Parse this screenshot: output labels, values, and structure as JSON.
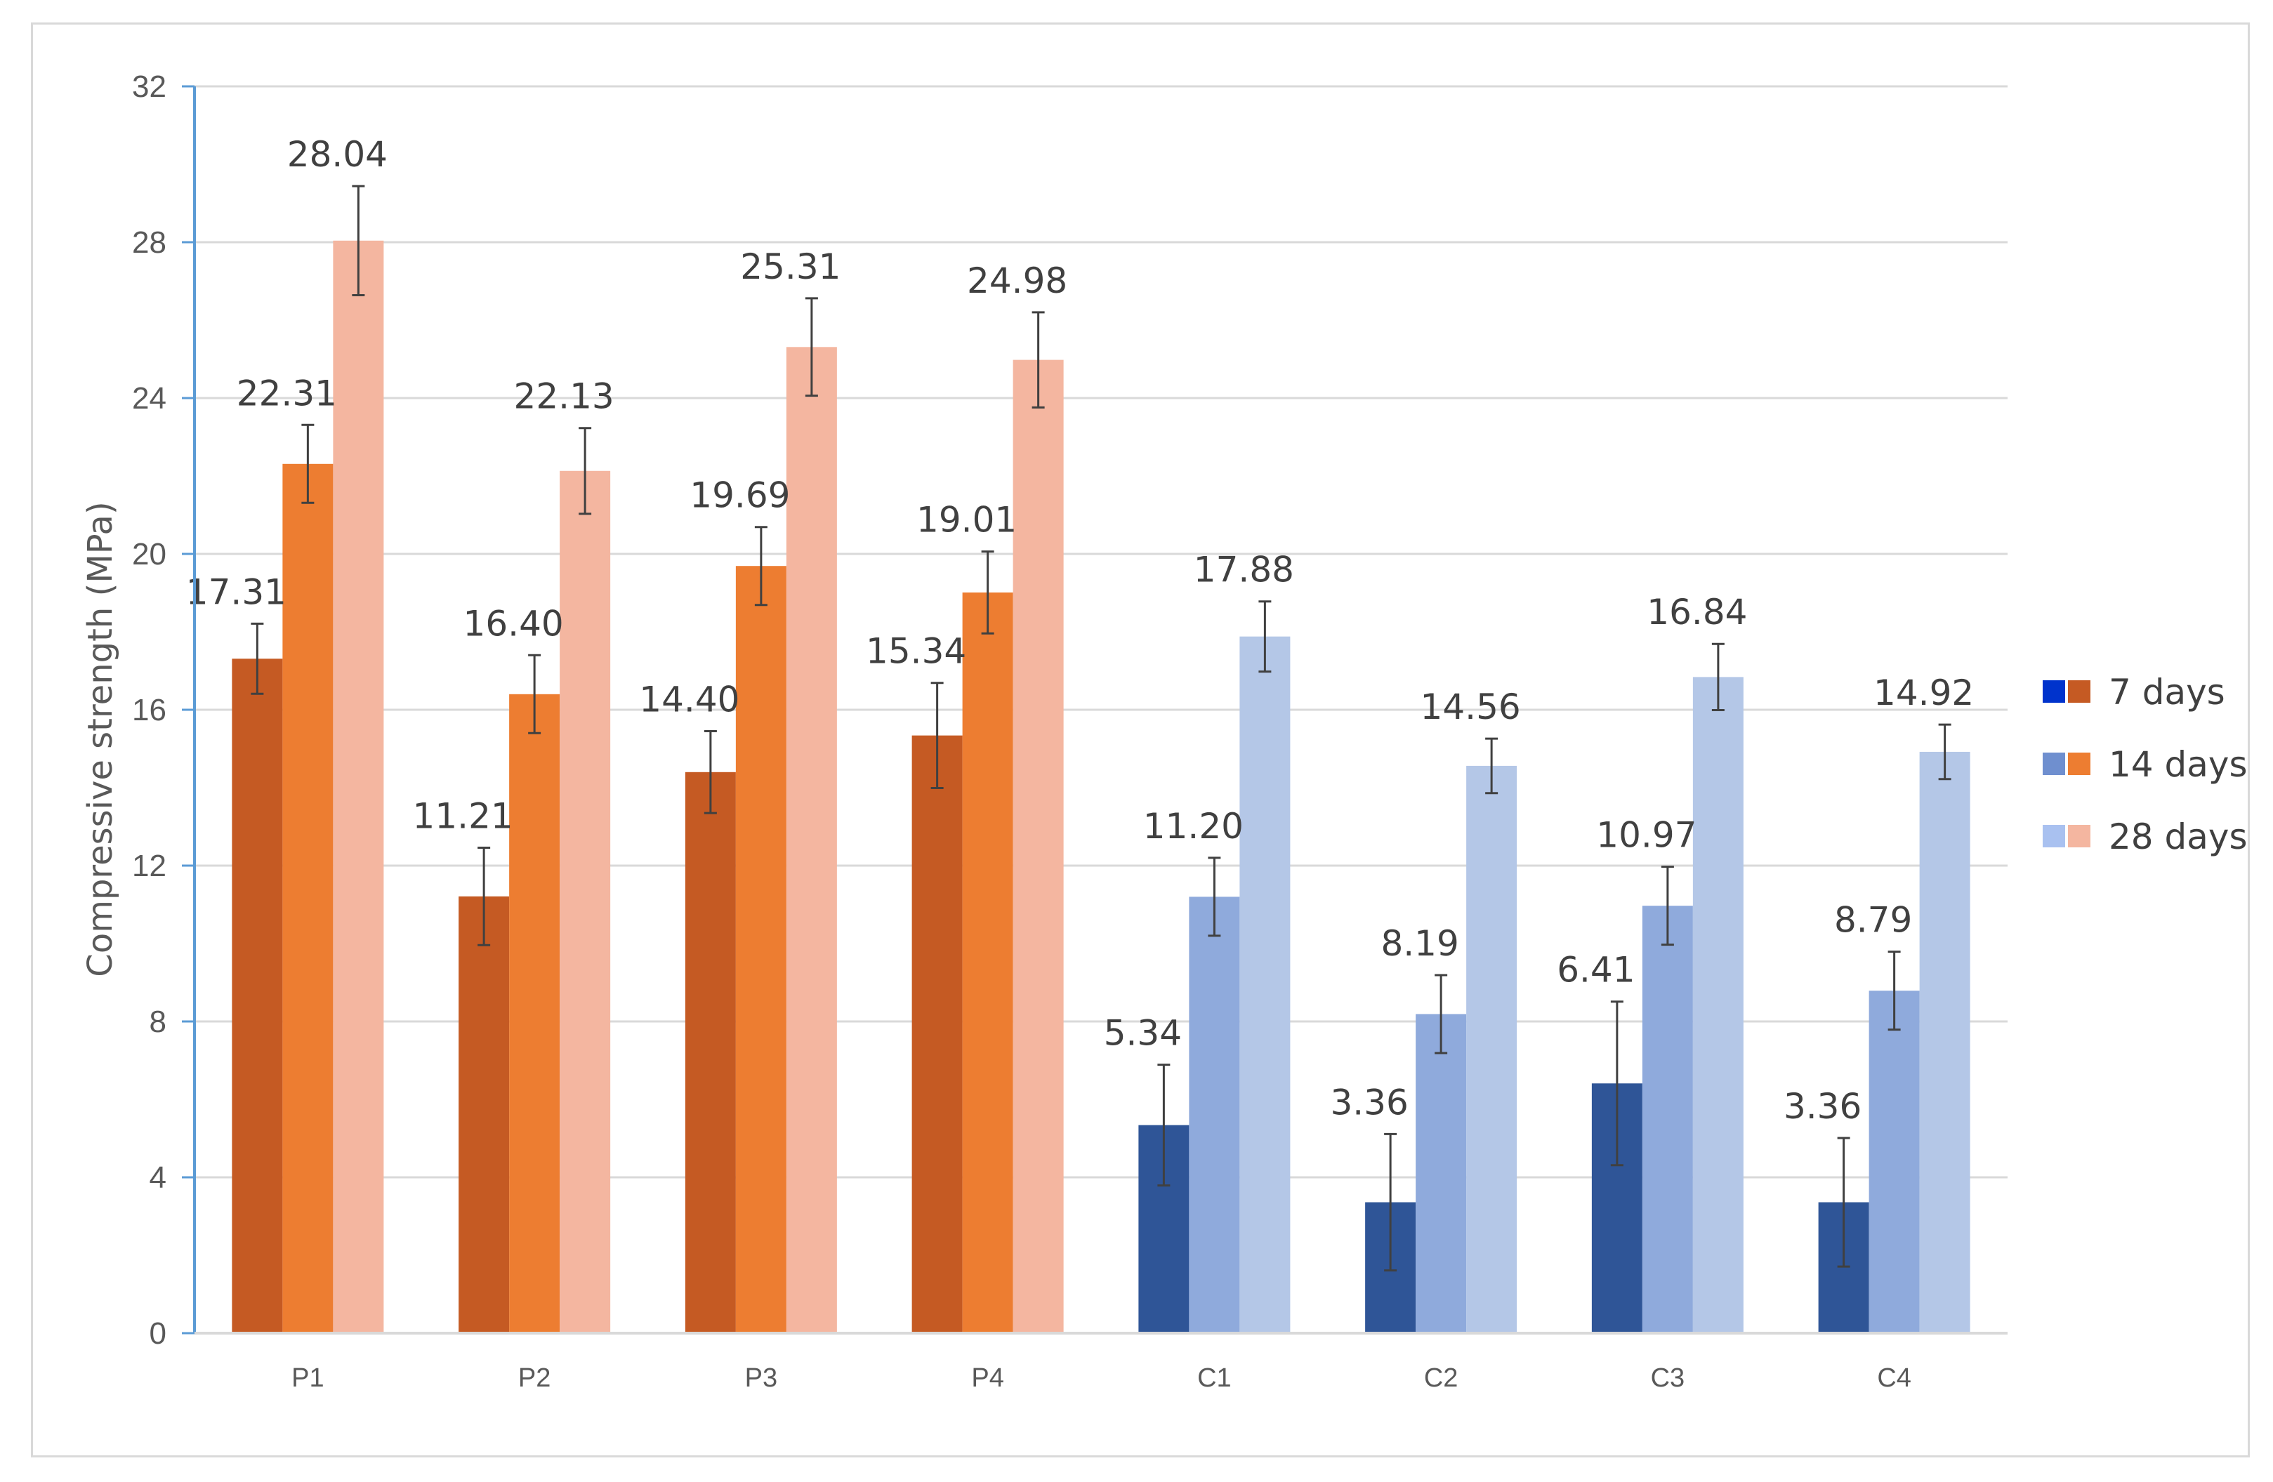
{
  "chart_data": {
    "type": "bar",
    "title": "",
    "xlabel": "",
    "ylabel": "Compressive strength (MPa)",
    "ylim": [
      0,
      32
    ],
    "yticks": [
      0,
      4,
      8,
      12,
      16,
      20,
      24,
      28,
      32
    ],
    "grid": true,
    "legend_position": "right",
    "categories": [
      "P1",
      "P2",
      "P3",
      "P4",
      "C1",
      "C2",
      "C3",
      "C4"
    ],
    "series": [
      {
        "name": "7 days",
        "values": [
          17.31,
          11.21,
          14.4,
          15.34,
          5.34,
          3.36,
          6.41,
          3.36
        ],
        "labels": [
          "17.31",
          "11.21",
          "14.40",
          "15.34",
          "5.34",
          "3.36",
          "6.41",
          "3.36"
        ],
        "error": [
          0.9,
          1.25,
          1.05,
          1.35,
          1.55,
          1.75,
          2.1,
          1.65
        ]
      },
      {
        "name": "14 days",
        "values": [
          22.31,
          16.4,
          19.69,
          19.01,
          11.2,
          8.19,
          10.97,
          8.79
        ],
        "labels": [
          "22.31",
          "16.40",
          "19.69",
          "19.01",
          "11.20",
          "8.19",
          "10.97",
          "8.79"
        ],
        "error": [
          1.0,
          1.0,
          1.0,
          1.05,
          1.0,
          1.0,
          1.0,
          1.0
        ]
      },
      {
        "name": "28 days",
        "values": [
          28.04,
          22.13,
          25.31,
          24.98,
          17.88,
          14.56,
          16.84,
          14.92
        ],
        "labels": [
          "28.04",
          "22.13",
          "25.31",
          "24.98",
          "17.88",
          "14.56",
          "16.84",
          "14.92"
        ],
        "error": [
          1.4,
          1.1,
          1.25,
          1.22,
          0.9,
          0.7,
          0.85,
          0.7
        ]
      }
    ],
    "group_palettes": {
      "P": [
        "#c55a23",
        "#ed7d31",
        "#f4b6a0"
      ],
      "C": [
        "#2f5597",
        "#8faadc",
        "#b4c7e7"
      ]
    },
    "legend_swatches": [
      [
        "#0033cc",
        "#c55a23"
      ],
      [
        "#6f8fcf",
        "#ed7d31"
      ],
      [
        "#a9c1f0",
        "#f4b6a0"
      ]
    ],
    "colors": {
      "grid": "#d9d9d9",
      "axis": "#5b9bd5",
      "baseline": "#d9d9d9",
      "error_bar": "#404040"
    }
  }
}
